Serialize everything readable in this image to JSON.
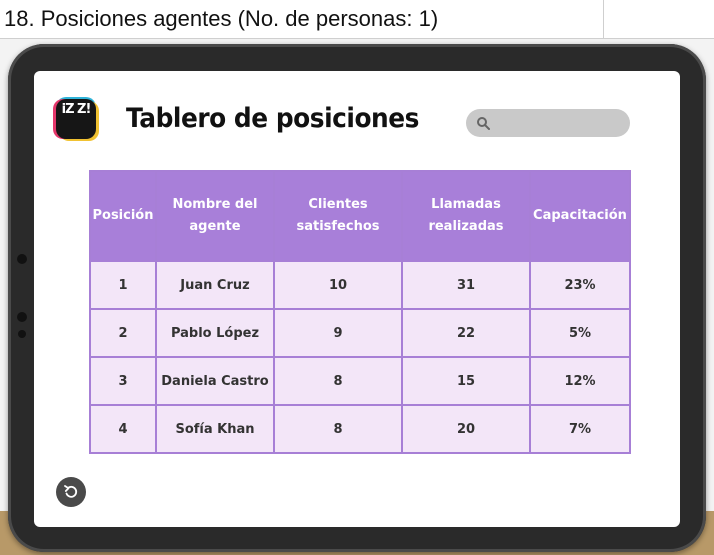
{
  "sheet": {
    "title": "18. Posiciones agentes (No. de personas: 1)"
  },
  "app": {
    "logo_text": "iZ Z!",
    "title": "Tablero de posiciones",
    "search": {
      "placeholder": "",
      "value": ""
    }
  },
  "table": {
    "columns": [
      "Posición",
      "Nombre del agente",
      "Clientes satisfechos",
      "Llamadas realizadas",
      "Capacitación"
    ],
    "rows": [
      [
        "1",
        "Juan Cruz",
        "10",
        "31",
        "23%"
      ],
      [
        "2",
        "Pablo López",
        "9",
        "22",
        "5%"
      ],
      [
        "3",
        "Daniela Castro",
        "8",
        "15",
        "12%"
      ],
      [
        "4",
        "Sofía Khan",
        "8",
        "20",
        "7%"
      ]
    ]
  },
  "colors": {
    "header_bg": "#a87fd9",
    "cell_bg": "#f3e6f8",
    "border": "#a77fd6"
  },
  "icons": {
    "search": "search-icon",
    "back": "undo-arrow-icon"
  }
}
